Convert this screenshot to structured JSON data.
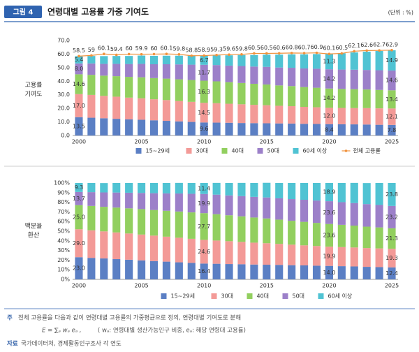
{
  "header": {
    "badge": "그림 4",
    "title": "연령대별 고용률 가중 기여도",
    "unit": "(단위 : %)"
  },
  "chart_data": [
    {
      "type": "bar",
      "stacked": true,
      "ylabel": [
        "고용률",
        "기여도"
      ],
      "categories": [
        "2000",
        null,
        null,
        null,
        null,
        "2005",
        null,
        null,
        null,
        null,
        "2010",
        null,
        null,
        null,
        null,
        "2015",
        null,
        null,
        null,
        null,
        "2020",
        null,
        null,
        null,
        null,
        "2025"
      ],
      "ylim": [
        0,
        70
      ],
      "yticks": [
        {
          "value": 0,
          "label": "0.0"
        },
        {
          "value": 10,
          "label": "10.0"
        },
        {
          "value": 20,
          "label": "20.0"
        },
        {
          "value": 30,
          "label": "30.0"
        },
        {
          "value": 40,
          "label": "40.0"
        },
        {
          "value": 50,
          "label": "50.0"
        },
        {
          "value": 60,
          "label": "60.0"
        },
        {
          "value": 70,
          "label": "70.0"
        }
      ],
      "grid": false,
      "series": [
        {
          "name": "15~29세",
          "color": "#5b7fc4",
          "values": [
            13.5,
            13.1,
            12.7,
            12.3,
            11.9,
            11.6,
            11.2,
            10.8,
            10.4,
            10.0,
            9.6,
            9.5,
            9.4,
            9.2,
            9.1,
            9.0,
            8.9,
            8.8,
            8.6,
            8.5,
            8.4,
            8.3,
            8.2,
            8.1,
            7.9,
            7.8
          ],
          "value_labels": [
            "13.5",
            null,
            null,
            null,
            null,
            null,
            null,
            null,
            null,
            null,
            "9.6",
            null,
            null,
            null,
            null,
            null,
            null,
            null,
            null,
            null,
            "8.4",
            null,
            null,
            null,
            null,
            "7.8"
          ]
        },
        {
          "name": "30대",
          "color": "#f39a97",
          "values": [
            17.0,
            16.8,
            16.5,
            16.3,
            16.0,
            15.8,
            15.5,
            15.3,
            15.0,
            14.8,
            14.5,
            14.3,
            14.0,
            13.8,
            13.5,
            13.3,
            13.0,
            12.8,
            12.5,
            12.3,
            12.0,
            12.0,
            12.0,
            12.1,
            12.1,
            12.1
          ],
          "value_labels": [
            "17.0",
            null,
            null,
            null,
            null,
            null,
            null,
            null,
            null,
            null,
            "14.5",
            null,
            null,
            null,
            null,
            null,
            null,
            null,
            null,
            null,
            "12.0",
            null,
            null,
            null,
            null,
            "12.1"
          ]
        },
        {
          "name": "40대",
          "color": "#92cf5f",
          "values": [
            14.6,
            14.8,
            14.9,
            15.1,
            15.3,
            15.5,
            15.6,
            15.8,
            16.0,
            16.1,
            16.3,
            16.1,
            15.9,
            15.7,
            15.5,
            15.3,
            15.0,
            14.8,
            14.6,
            14.4,
            14.2,
            14.0,
            13.9,
            13.7,
            13.6,
            13.4
          ],
          "value_labels": [
            "14.6",
            null,
            null,
            null,
            null,
            null,
            null,
            null,
            null,
            null,
            "16.3",
            null,
            null,
            null,
            null,
            null,
            null,
            null,
            null,
            null,
            "14.2",
            null,
            null,
            null,
            null,
            "13.4"
          ]
        },
        {
          "name": "50대",
          "color": "#9c80c9",
          "values": [
            8.0,
            8.4,
            8.7,
            9.1,
            9.5,
            9.9,
            10.2,
            10.6,
            11.0,
            11.3,
            11.7,
            12.0,
            12.2,
            12.5,
            12.7,
            13.0,
            13.2,
            13.5,
            13.7,
            14.0,
            14.2,
            14.3,
            14.4,
            14.4,
            14.5,
            14.6
          ],
          "value_labels": [
            "8.0",
            null,
            null,
            null,
            null,
            null,
            null,
            null,
            null,
            null,
            "11.7",
            null,
            null,
            null,
            null,
            null,
            null,
            null,
            null,
            null,
            "14.2",
            null,
            null,
            null,
            null,
            "14.6"
          ]
        },
        {
          "name": "60세 이상",
          "color": "#50c3d3",
          "values": [
            5.4,
            5.5,
            5.7,
            5.8,
            5.9,
            6.1,
            6.2,
            6.3,
            6.4,
            6.6,
            6.7,
            7.2,
            7.6,
            8.1,
            8.5,
            9.0,
            9.5,
            9.9,
            10.4,
            10.8,
            11.3,
            12.0,
            12.7,
            13.5,
            14.2,
            14.9
          ],
          "value_labels": [
            "5.4",
            null,
            null,
            null,
            null,
            null,
            null,
            null,
            null,
            null,
            "6.7",
            null,
            null,
            null,
            null,
            null,
            null,
            null,
            null,
            null,
            "11.3",
            null,
            null,
            null,
            null,
            "14.9"
          ]
        },
        {
          "name": "전체 고용률",
          "type": "line",
          "color": "#f0923c",
          "show_values": true,
          "values": [
            58.5,
            59.0,
            60.1,
            59.4,
            60.0,
            59.9,
            60.0,
            60.1,
            59.8,
            58.8,
            58.9,
            59.3,
            59.6,
            59.8,
            60.5,
            60.5,
            60.6,
            60.8,
            60.7,
            60.9,
            60.1,
            60.5,
            62.1,
            62.6,
            62.7,
            62.9
          ]
        }
      ]
    },
    {
      "type": "bar",
      "stacked": true,
      "ylabel": [
        "백분율",
        "환산"
      ],
      "categories": [
        "2000",
        null,
        null,
        null,
        null,
        "2005",
        null,
        null,
        null,
        null,
        "2010",
        null,
        null,
        null,
        null,
        "2015",
        null,
        null,
        null,
        null,
        "2020",
        null,
        null,
        null,
        null,
        "2025"
      ],
      "ylim": [
        0,
        100
      ],
      "yticks": [
        {
          "value": 0,
          "label": "0%"
        },
        {
          "value": 10,
          "label": "10%"
        },
        {
          "value": 20,
          "label": "20%"
        },
        {
          "value": 30,
          "label": "30%"
        },
        {
          "value": 40,
          "label": "40%"
        },
        {
          "value": 50,
          "label": "50%"
        },
        {
          "value": 60,
          "label": "60%"
        },
        {
          "value": 70,
          "label": "70%"
        },
        {
          "value": 80,
          "label": "80%"
        },
        {
          "value": 90,
          "label": "90%"
        },
        {
          "value": 100,
          "label": "100%"
        }
      ],
      "grid": false,
      "series": [
        {
          "name": "15~29세",
          "color": "#5b7fc4",
          "values": [
            23.0,
            22.3,
            21.7,
            21.0,
            20.4,
            19.7,
            19.0,
            18.4,
            17.7,
            17.1,
            16.4,
            16.2,
            15.9,
            15.7,
            15.4,
            15.2,
            15.0,
            14.7,
            14.5,
            14.2,
            14.0,
            13.7,
            13.4,
            13.0,
            12.7,
            12.4
          ],
          "value_labels": [
            "23.0",
            null,
            null,
            null,
            null,
            null,
            null,
            null,
            null,
            null,
            "16.4",
            null,
            null,
            null,
            null,
            null,
            null,
            null,
            null,
            null,
            "14.0",
            null,
            null,
            null,
            null,
            "12.4"
          ]
        },
        {
          "name": "30대",
          "color": "#f39a97",
          "values": [
            29.0,
            28.6,
            28.1,
            27.7,
            27.2,
            26.8,
            26.4,
            25.9,
            25.5,
            25.0,
            24.6,
            24.1,
            23.7,
            23.2,
            22.7,
            22.3,
            21.8,
            21.3,
            20.8,
            20.4,
            19.9,
            19.8,
            19.7,
            19.5,
            19.4,
            19.3
          ],
          "value_labels": [
            "29.0",
            null,
            null,
            null,
            null,
            null,
            null,
            null,
            null,
            null,
            "24.6",
            null,
            null,
            null,
            null,
            null,
            null,
            null,
            null,
            null,
            "19.9",
            null,
            null,
            null,
            null,
            "19.3"
          ]
        },
        {
          "name": "40대",
          "color": "#92cf5f",
          "values": [
            25.0,
            25.3,
            25.5,
            25.8,
            26.1,
            26.4,
            26.6,
            26.9,
            27.2,
            27.4,
            27.7,
            27.3,
            26.9,
            26.5,
            26.1,
            25.7,
            25.2,
            24.8,
            24.4,
            24.0,
            23.6,
            23.1,
            22.7,
            22.2,
            21.8,
            21.3
          ],
          "value_labels": [
            "25.0",
            null,
            null,
            null,
            null,
            null,
            null,
            null,
            null,
            null,
            "27.7",
            null,
            null,
            null,
            null,
            null,
            null,
            null,
            null,
            null,
            "23.6",
            null,
            null,
            null,
            null,
            "21.3"
          ]
        },
        {
          "name": "50대",
          "color": "#9c80c9",
          "values": [
            13.7,
            14.3,
            14.9,
            15.6,
            16.2,
            16.8,
            17.4,
            18.0,
            18.7,
            19.3,
            19.9,
            20.3,
            20.6,
            21.0,
            21.4,
            21.8,
            22.1,
            22.5,
            22.9,
            23.2,
            23.6,
            23.5,
            23.4,
            23.4,
            23.3,
            23.2
          ],
          "value_labels": [
            "13.7",
            null,
            null,
            null,
            null,
            null,
            null,
            null,
            null,
            null,
            "19.9",
            null,
            null,
            null,
            null,
            null,
            null,
            null,
            null,
            null,
            "23.6",
            null,
            null,
            null,
            null,
            "23.2"
          ]
        },
        {
          "name": "60세 이상",
          "color": "#50c3d3",
          "values": [
            9.3,
            9.5,
            9.7,
            9.9,
            10.1,
            10.3,
            10.6,
            10.8,
            11.0,
            11.2,
            11.4,
            12.2,
            12.9,
            13.7,
            14.4,
            15.2,
            15.9,
            16.7,
            17.4,
            18.2,
            18.9,
            19.9,
            20.9,
            21.8,
            22.8,
            23.8
          ],
          "value_labels": [
            "9.3",
            null,
            null,
            null,
            null,
            null,
            null,
            null,
            null,
            null,
            "11.4",
            null,
            null,
            null,
            null,
            null,
            null,
            null,
            null,
            null,
            "18.9",
            null,
            null,
            null,
            null,
            "23.8"
          ]
        }
      ]
    }
  ],
  "notes": {
    "note_tag": "주",
    "note": "전체 고용률을 다음과 같이 연령대별 고용률의 가중평균으로 정의, 연령대별 기여도로 분해",
    "formula": "E = ∑ₐ wₐ eₐ ,",
    "formula_note": "( wₐ: 연령대별 생산가능인구 비중, eₐ: 해당 연령대 고용률)",
    "source_tag": "자료",
    "source": "국가데이터처, 경제활동인구조사 각 연도"
  }
}
